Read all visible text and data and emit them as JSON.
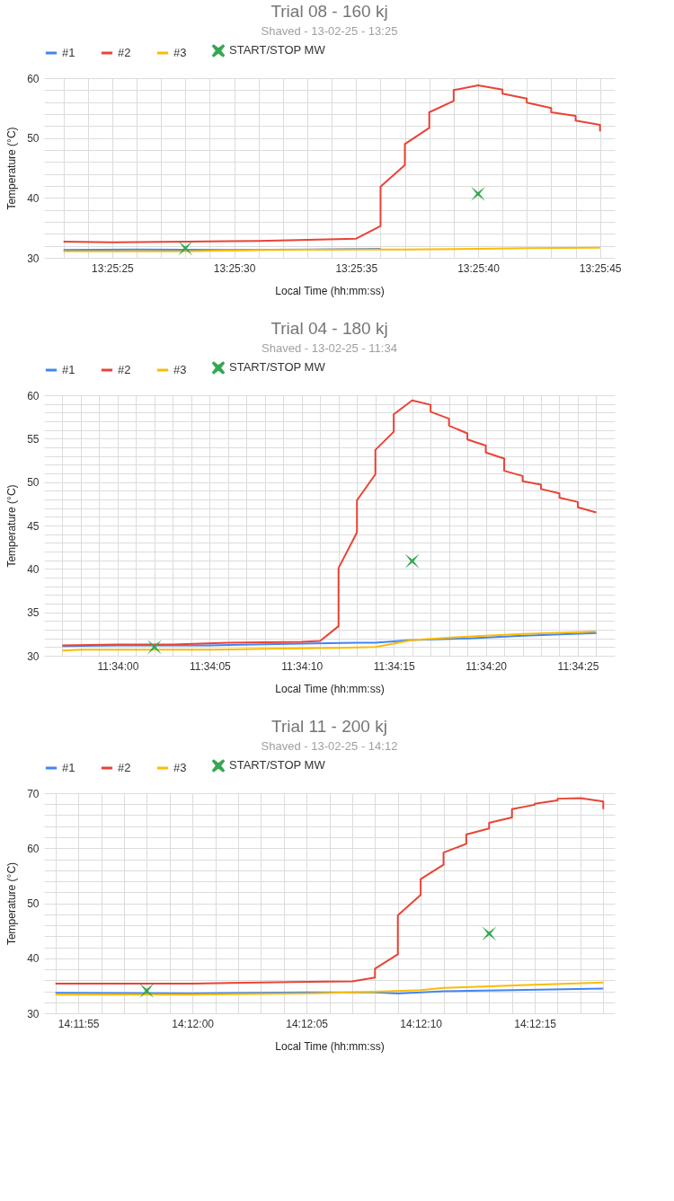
{
  "chart_data": [
    {
      "type": "line",
      "title": "Trial 08 - 160 kj",
      "subtitle": "Shaved - 13-02-25 - 13:25",
      "xlabel": "Local Time (hh:mm:ss)",
      "ylabel": "Temperature (°C)",
      "legend": "top",
      "grid": true,
      "xlim": [
        13.422834,
        13.429334
      ],
      "ylim": [
        30,
        60
      ],
      "xticks": [
        {
          "value": 13.423056,
          "label": null
        },
        {
          "value": 13.423333,
          "label": null
        },
        {
          "value": 13.423611,
          "label": "13:25:25"
        },
        {
          "value": 13.423889,
          "label": null
        },
        {
          "value": 13.424167,
          "label": null
        },
        {
          "value": 13.424444,
          "label": null
        },
        {
          "value": 13.424722,
          "label": null
        },
        {
          "value": 13.425,
          "label": "13:25:30"
        },
        {
          "value": 13.425278,
          "label": null
        },
        {
          "value": 13.425556,
          "label": null
        },
        {
          "value": 13.425833,
          "label": null
        },
        {
          "value": 13.426111,
          "label": null
        },
        {
          "value": 13.426389,
          "label": "13:25:35"
        },
        {
          "value": 13.426667,
          "label": null
        },
        {
          "value": 13.426944,
          "label": null
        },
        {
          "value": 13.427222,
          "label": null
        },
        {
          "value": 13.4275,
          "label": null
        },
        {
          "value": 13.427778,
          "label": "13:25:40"
        },
        {
          "value": 13.428056,
          "label": null
        },
        {
          "value": 13.428333,
          "label": null
        },
        {
          "value": 13.428611,
          "label": null
        },
        {
          "value": 13.428889,
          "label": null
        },
        {
          "value": 13.429167,
          "label": "13:25:45"
        }
      ],
      "yticks": [
        30,
        {
          "value": 32,
          "label": null
        },
        {
          "value": 34,
          "label": null
        },
        {
          "value": 36,
          "label": null
        },
        {
          "value": 38,
          "label": null
        },
        40,
        {
          "value": 42,
          "label": null
        },
        {
          "value": 44,
          "label": null
        },
        {
          "value": 46,
          "label": null
        },
        {
          "value": 48,
          "label": null
        },
        50,
        {
          "value": 52,
          "label": null
        },
        {
          "value": 54,
          "label": null
        },
        {
          "value": 56,
          "label": null
        },
        {
          "value": 58,
          "label": null
        },
        60
      ],
      "series": [
        {
          "name": "#1",
          "color": "#4285f4",
          "x": [
            13.423056,
            13.423889,
            13.425,
            13.425833,
            13.426667
          ],
          "values": [
            31.3,
            31.4,
            31.3,
            31.4,
            31.5
          ]
        },
        {
          "name": "#2",
          "color": "#ea4335",
          "x": [
            13.423056,
            13.423611,
            13.424444,
            13.425278,
            13.425833,
            13.426389,
            13.426667,
            13.426667,
            13.426944,
            13.426944,
            13.427222,
            13.427222,
            13.4275,
            13.4275,
            13.427778,
            13.428056,
            13.428056,
            13.428333,
            13.428333,
            13.428611,
            13.428611,
            13.428889,
            13.428889,
            13.429167,
            13.429167
          ],
          "values": [
            32.7,
            32.6,
            32.7,
            32.8,
            33.0,
            33.2,
            35.3,
            41.9,
            45.5,
            49.0,
            51.7,
            54.3,
            56.2,
            58.0,
            58.8,
            58.1,
            57.4,
            56.6,
            55.9,
            55.0,
            54.3,
            53.7,
            52.9,
            52.2,
            51.1
          ]
        },
        {
          "name": "#3",
          "color": "#fbbc04",
          "x": [
            13.423056,
            13.424444,
            13.425278,
            13.426389,
            13.426944,
            13.427778,
            13.428333,
            13.429167
          ],
          "values": [
            31.1,
            31.1,
            31.3,
            31.4,
            31.4,
            31.5,
            31.6,
            31.7
          ]
        },
        {
          "name": "START/STOP MW",
          "type": "scatter",
          "marker": "cross",
          "color": "#34a853",
          "x": [
            13.424444,
            13.427778
          ],
          "values": [
            31.6,
            40.7
          ]
        }
      ]
    },
    {
      "type": "line",
      "title": "Trial 04 - 180 kj",
      "subtitle": "Shaved - 13-02-25 - 11:34",
      "xlabel": "Local Time (hh:mm:ss)",
      "ylabel": "Temperature (°C)",
      "legend": "top",
      "grid": true,
      "xlim": [
        11.565556,
        11.574167
      ],
      "ylim": [
        30,
        60
      ],
      "xticks": [
        {
          "value": 11.565833,
          "label": null
        },
        {
          "value": 11.566111,
          "label": null
        },
        {
          "value": 11.566389,
          "label": null
        },
        {
          "value": 11.566667,
          "label": "11:34:00"
        },
        {
          "value": 11.566944,
          "label": null
        },
        {
          "value": 11.567222,
          "label": null
        },
        {
          "value": 11.5675,
          "label": null
        },
        {
          "value": 11.567778,
          "label": null
        },
        {
          "value": 11.568056,
          "label": "11:34:05"
        },
        {
          "value": 11.568333,
          "label": null
        },
        {
          "value": 11.568611,
          "label": null
        },
        {
          "value": 11.568889,
          "label": null
        },
        {
          "value": 11.569167,
          "label": null
        },
        {
          "value": 11.569444,
          "label": "11:34:10"
        },
        {
          "value": 11.569722,
          "label": null
        },
        {
          "value": 11.57,
          "label": null
        },
        {
          "value": 11.570278,
          "label": null
        },
        {
          "value": 11.570556,
          "label": null
        },
        {
          "value": 11.570833,
          "label": "11:34:15"
        },
        {
          "value": 11.571111,
          "label": null
        },
        {
          "value": 11.571389,
          "label": null
        },
        {
          "value": 11.571667,
          "label": null
        },
        {
          "value": 11.571944,
          "label": null
        },
        {
          "value": 11.572222,
          "label": "11:34:20"
        },
        {
          "value": 11.5725,
          "label": null
        },
        {
          "value": 11.572778,
          "label": null
        },
        {
          "value": 11.573056,
          "label": null
        },
        {
          "value": 11.573333,
          "label": null
        },
        {
          "value": 11.573611,
          "label": "11:34:25"
        },
        {
          "value": 11.573889,
          "label": null
        }
      ],
      "yticks": [
        30,
        {
          "value": 31,
          "label": null
        },
        {
          "value": 32,
          "label": null
        },
        {
          "value": 33,
          "label": null
        },
        {
          "value": 34,
          "label": null
        },
        35,
        {
          "value": 36,
          "label": null
        },
        {
          "value": 37,
          "label": null
        },
        {
          "value": 38,
          "label": null
        },
        {
          "value": 39,
          "label": null
        },
        40,
        {
          "value": 41,
          "label": null
        },
        {
          "value": 42,
          "label": null
        },
        {
          "value": 43,
          "label": null
        },
        {
          "value": 44,
          "label": null
        },
        45,
        {
          "value": 46,
          "label": null
        },
        {
          "value": 47,
          "label": null
        },
        {
          "value": 48,
          "label": null
        },
        {
          "value": 49,
          "label": null
        },
        50,
        {
          "value": 51,
          "label": null
        },
        {
          "value": 52,
          "label": null
        },
        {
          "value": 53,
          "label": null
        },
        {
          "value": 54,
          "label": null
        },
        55,
        {
          "value": 56,
          "label": null
        },
        {
          "value": 57,
          "label": null
        },
        {
          "value": 58,
          "label": null
        },
        {
          "value": 59,
          "label": null
        },
        60
      ],
      "series": [
        {
          "name": "#1",
          "color": "#4285f4",
          "x": [
            11.565833,
            11.566667,
            11.568056,
            11.569444,
            11.570278,
            11.570556,
            11.571111,
            11.571944,
            11.572778,
            11.573889
          ],
          "values": [
            31.1,
            31.2,
            31.2,
            31.4,
            31.5,
            31.5,
            31.8,
            32.0,
            32.3,
            32.6
          ]
        },
        {
          "name": "#2",
          "color": "#ea4335",
          "x": [
            11.565833,
            11.566667,
            11.5675,
            11.568333,
            11.569444,
            11.569722,
            11.57,
            11.57,
            11.570278,
            11.570278,
            11.570556,
            11.570556,
            11.570833,
            11.570833,
            11.571111,
            11.571389,
            11.571389,
            11.571667,
            11.571667,
            11.571944,
            11.571944,
            11.572222,
            11.572222,
            11.5725,
            11.5725,
            11.572778,
            11.572778,
            11.573056,
            11.573056,
            11.573333,
            11.573333,
            11.573611,
            11.573611,
            11.573889
          ],
          "values": [
            31.2,
            31.3,
            31.3,
            31.5,
            31.6,
            31.7,
            33.4,
            40.1,
            44.2,
            47.9,
            50.9,
            53.7,
            55.8,
            57.8,
            59.4,
            58.9,
            58.1,
            57.3,
            56.5,
            55.6,
            54.9,
            54.2,
            53.4,
            52.7,
            51.3,
            50.7,
            50.1,
            49.7,
            49.2,
            48.7,
            48.2,
            47.7,
            47.1,
            46.5
          ]
        },
        {
          "name": "#3",
          "color": "#fbbc04",
          "x": [
            11.565833,
            11.566111,
            11.566667,
            11.568056,
            11.568889,
            11.57,
            11.570556,
            11.570833,
            11.571111,
            11.571944,
            11.572778,
            11.573889
          ],
          "values": [
            30.6,
            30.7,
            30.7,
            30.7,
            30.8,
            30.9,
            31.0,
            31.4,
            31.8,
            32.2,
            32.5,
            32.8
          ]
        },
        {
          "name": "START/STOP MW",
          "type": "scatter",
          "marker": "cross",
          "color": "#34a853",
          "x": [
            11.567222,
            11.571111
          ],
          "values": [
            31.0,
            40.9
          ]
        }
      ]
    },
    {
      "type": "line",
      "title": "Trial 11 - 200 kj",
      "subtitle": "Shaved - 13-02-25 - 14:12",
      "xlabel": "Local Time (hh:mm:ss)",
      "ylabel": "Temperature (°C)",
      "legend": "top",
      "grid": true,
      "xlim": [
        14.198194,
        14.205139
      ],
      "ylim": [
        30,
        70
      ],
      "xticks": [
        {
          "value": 14.198333,
          "label": null
        },
        {
          "value": 14.198611,
          "label": "14:11:55"
        },
        {
          "value": 14.198889,
          "label": null
        },
        {
          "value": 14.199167,
          "label": null
        },
        {
          "value": 14.199444,
          "label": null
        },
        {
          "value": 14.199722,
          "label": null
        },
        {
          "value": 14.2,
          "label": "14:12:00"
        },
        {
          "value": 14.200278,
          "label": null
        },
        {
          "value": 14.200556,
          "label": null
        },
        {
          "value": 14.200833,
          "label": null
        },
        {
          "value": 14.201111,
          "label": null
        },
        {
          "value": 14.201389,
          "label": "14:12:05"
        },
        {
          "value": 14.201667,
          "label": null
        },
        {
          "value": 14.201944,
          "label": null
        },
        {
          "value": 14.202222,
          "label": null
        },
        {
          "value": 14.2025,
          "label": null
        },
        {
          "value": 14.202778,
          "label": "14:12:10"
        },
        {
          "value": 14.203056,
          "label": null
        },
        {
          "value": 14.203333,
          "label": null
        },
        {
          "value": 14.203611,
          "label": null
        },
        {
          "value": 14.203889,
          "label": null
        },
        {
          "value": 14.204167,
          "label": "14:12:15"
        },
        {
          "value": 14.204444,
          "label": null
        },
        {
          "value": 14.204722,
          "label": null
        },
        {
          "value": 14.205,
          "label": null
        }
      ],
      "yticks": [
        30,
        {
          "value": 32,
          "label": null
        },
        {
          "value": 34,
          "label": null
        },
        {
          "value": 36,
          "label": null
        },
        {
          "value": 38,
          "label": null
        },
        40,
        {
          "value": 42,
          "label": null
        },
        {
          "value": 44,
          "label": null
        },
        {
          "value": 46,
          "label": null
        },
        {
          "value": 48,
          "label": null
        },
        50,
        {
          "value": 52,
          "label": null
        },
        {
          "value": 54,
          "label": null
        },
        {
          "value": 56,
          "label": null
        },
        {
          "value": 58,
          "label": null
        },
        60,
        {
          "value": 62,
          "label": null
        },
        {
          "value": 64,
          "label": null
        },
        {
          "value": 66,
          "label": null
        },
        {
          "value": 68,
          "label": null
        },
        70
      ],
      "series": [
        {
          "name": "#1",
          "color": "#4285f4",
          "x": [
            14.198333,
            14.2,
            14.201389,
            14.202222,
            14.2025,
            14.203056,
            14.203889,
            14.205
          ],
          "values": [
            33.7,
            33.6,
            33.8,
            33.8,
            33.6,
            34.0,
            34.2,
            34.5
          ]
        },
        {
          "name": "#2",
          "color": "#ea4335",
          "x": [
            14.198333,
            14.2,
            14.201389,
            14.201944,
            14.202222,
            14.202222,
            14.2025,
            14.2025,
            14.202778,
            14.202778,
            14.203056,
            14.203056,
            14.203333,
            14.203333,
            14.203611,
            14.203611,
            14.203889,
            14.203889,
            14.204167,
            14.204167,
            14.204444,
            14.204444,
            14.204722,
            14.205,
            14.205
          ],
          "values": [
            35.4,
            35.4,
            35.7,
            35.8,
            36.5,
            38.1,
            40.7,
            47.8,
            51.5,
            54.4,
            57.0,
            59.2,
            60.8,
            62.5,
            63.6,
            64.6,
            65.6,
            67.1,
            67.9,
            68.1,
            68.7,
            69.0,
            69.1,
            68.5,
            67.1
          ]
        },
        {
          "name": "#3",
          "color": "#fbbc04",
          "x": [
            14.198333,
            14.2,
            14.201389,
            14.202222,
            14.202778,
            14.203056,
            14.203611,
            14.204167,
            14.205
          ],
          "values": [
            33.4,
            33.4,
            33.6,
            33.9,
            34.2,
            34.6,
            34.9,
            35.2,
            35.6
          ]
        },
        {
          "name": "START/STOP MW",
          "type": "scatter",
          "marker": "cross",
          "color": "#34a853",
          "x": [
            14.199444,
            14.203611
          ],
          "values": [
            34.1,
            44.5
          ]
        }
      ]
    }
  ]
}
